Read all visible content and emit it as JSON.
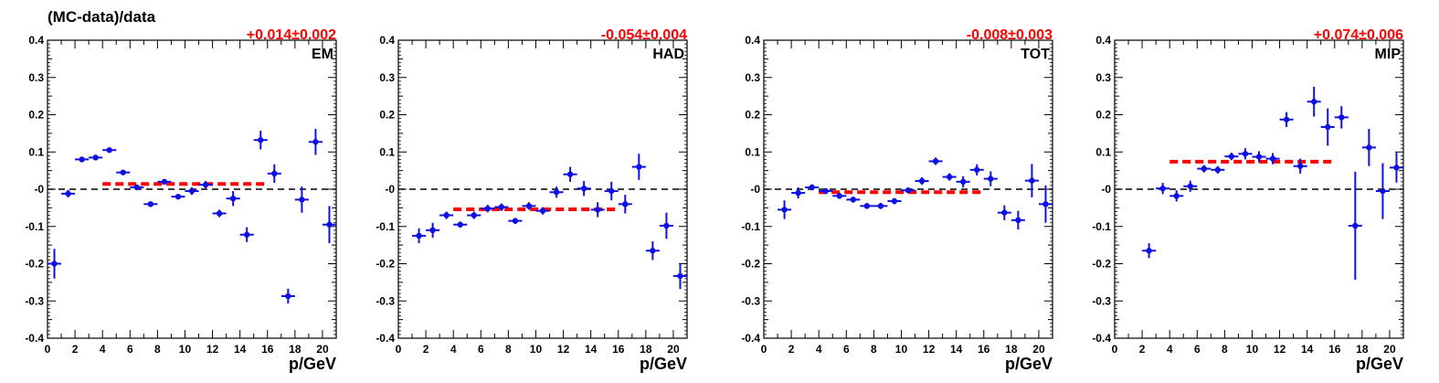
{
  "ylabel": "(MC-data)/data",
  "colors": {
    "points": "#1010e0",
    "fit": "#ff0000",
    "zero_line": "#000000"
  },
  "chart_data": [
    {
      "type": "scatter",
      "panel": "EM",
      "fit_text": "+0.014±0.002",
      "fit": {
        "y": 0.014,
        "x_range": [
          4,
          16
        ]
      },
      "xlabel": "p/GeV",
      "ylabel": "(MC-data)/data",
      "xlim": [
        0,
        21
      ],
      "ylim": [
        -0.4,
        0.4
      ],
      "x": [
        0.5,
        1.5,
        2.5,
        3.5,
        4.5,
        5.5,
        6.5,
        7.5,
        8.5,
        9.5,
        10.5,
        11.5,
        12.5,
        13.5,
        14.5,
        15.5,
        16.5,
        17.5,
        18.5,
        19.5,
        20.5
      ],
      "y": [
        -0.2,
        -0.012,
        0.08,
        0.085,
        0.105,
        0.045,
        0.005,
        -0.04,
        0.02,
        -0.02,
        -0.005,
        0.012,
        -0.065,
        -0.025,
        -0.122,
        0.132,
        0.042,
        -0.287,
        -0.028,
        0.127,
        -0.095
      ],
      "yerr": [
        0.04,
        0.01,
        0.005,
        0.005,
        0.005,
        0.005,
        0.005,
        0.005,
        0.005,
        0.005,
        0.01,
        0.01,
        0.01,
        0.02,
        0.02,
        0.025,
        0.025,
        0.02,
        0.035,
        0.035,
        0.05
      ]
    },
    {
      "type": "scatter",
      "panel": "HAD",
      "fit_text": "-0.054±0.004",
      "fit": {
        "y": -0.054,
        "x_range": [
          4,
          16
        ]
      },
      "xlabel": "p/GeV",
      "ylabel": "",
      "xlim": [
        0,
        21
      ],
      "ylim": [
        -0.4,
        0.4
      ],
      "x": [
        1.5,
        2.5,
        3.5,
        4.5,
        5.5,
        6.5,
        7.5,
        8.5,
        9.5,
        10.5,
        11.5,
        12.5,
        13.5,
        14.5,
        15.5,
        16.5,
        17.5,
        18.5,
        19.5,
        20.5
      ],
      "y": [
        -0.125,
        -0.11,
        -0.07,
        -0.095,
        -0.07,
        -0.052,
        -0.048,
        -0.085,
        -0.045,
        -0.058,
        -0.008,
        0.04,
        0.002,
        -0.055,
        -0.005,
        -0.04,
        0.06,
        -0.165,
        -0.098,
        -0.233
      ],
      "yerr": [
        0.02,
        0.02,
        0.01,
        0.008,
        0.01,
        0.01,
        0.01,
        0.008,
        0.01,
        0.01,
        0.015,
        0.02,
        0.02,
        0.02,
        0.025,
        0.025,
        0.035,
        0.025,
        0.035,
        0.035
      ]
    },
    {
      "type": "scatter",
      "panel": "TOT",
      "fit_text": "-0.008±0.003",
      "fit": {
        "y": -0.008,
        "x_range": [
          4,
          16
        ]
      },
      "xlabel": "p/GeV",
      "ylabel": "",
      "xlim": [
        0,
        21
      ],
      "ylim": [
        -0.4,
        0.4
      ],
      "x": [
        1.5,
        2.5,
        3.5,
        4.5,
        5.5,
        6.5,
        7.5,
        8.5,
        9.5,
        10.5,
        11.5,
        12.5,
        13.5,
        14.5,
        15.5,
        16.5,
        17.5,
        18.5,
        19.5,
        20.5
      ],
      "y": [
        -0.055,
        -0.01,
        0.005,
        -0.005,
        -0.018,
        -0.028,
        -0.045,
        -0.045,
        -0.032,
        -0.003,
        0.022,
        0.075,
        0.033,
        0.02,
        0.052,
        0.028,
        -0.063,
        -0.083,
        0.023,
        -0.04
      ],
      "yerr": [
        0.025,
        0.015,
        0.008,
        0.005,
        0.008,
        0.008,
        0.008,
        0.008,
        0.008,
        0.008,
        0.01,
        0.01,
        0.01,
        0.015,
        0.015,
        0.02,
        0.02,
        0.025,
        0.045,
        0.05
      ]
    },
    {
      "type": "scatter",
      "panel": "MIP",
      "fit_text": "+0.074±0.006",
      "fit": {
        "y": 0.074,
        "x_range": [
          4,
          16
        ]
      },
      "xlabel": "p/GeV",
      "ylabel": "",
      "xlim": [
        0,
        21
      ],
      "ylim": [
        -0.4,
        0.4
      ],
      "x": [
        2.5,
        3.5,
        4.5,
        5.5,
        6.5,
        7.5,
        8.5,
        9.5,
        10.5,
        11.5,
        12.5,
        13.5,
        14.5,
        15.5,
        16.5,
        17.5,
        18.5,
        19.5,
        20.5
      ],
      "y": [
        -0.165,
        0.002,
        -0.018,
        0.008,
        0.055,
        0.052,
        0.088,
        0.095,
        0.087,
        0.082,
        0.187,
        0.062,
        0.235,
        0.167,
        0.193,
        -0.098,
        0.112,
        -0.005,
        0.058
      ],
      "yerr": [
        0.02,
        0.015,
        0.015,
        0.015,
        0.01,
        0.01,
        0.01,
        0.015,
        0.015,
        0.015,
        0.02,
        0.02,
        0.04,
        0.05,
        0.03,
        0.145,
        0.05,
        0.075,
        0.04
      ]
    }
  ]
}
